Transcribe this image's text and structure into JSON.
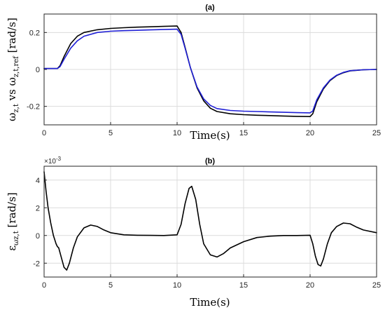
{
  "chart_data": [
    {
      "type": "line",
      "title": "(a)",
      "xlabel": "Time(s)",
      "ylabel": "ω_{z,t} vs ω_{z,t,ref} [rad/s]",
      "ylabel_parts": [
        "ω",
        "z,t",
        " vs ",
        "ω",
        "z,t,ref",
        " [rad/s]"
      ],
      "xlim": [
        0,
        25
      ],
      "ylim": [
        -0.3,
        0.3
      ],
      "xticks": [
        0,
        5,
        10,
        15,
        20,
        25
      ],
      "yticks": [
        -0.2,
        0,
        0.2
      ],
      "ytick_labels": [
        "-0.2",
        "0",
        "0.2"
      ],
      "grid": true,
      "series": [
        {
          "color": "#000000",
          "x": [
            0,
            1,
            1.2,
            1.5,
            2,
            2.5,
            3,
            4,
            5,
            6,
            7,
            8,
            9,
            10,
            10.3,
            10.6,
            11,
            11.5,
            12,
            12.5,
            13,
            14,
            15,
            16,
            17,
            18,
            19,
            20,
            20.2,
            20.5,
            21,
            21.5,
            22,
            22.5,
            23,
            24,
            25
          ],
          "y": [
            0.005,
            0.005,
            0.02,
            0.07,
            0.14,
            0.18,
            0.2,
            0.215,
            0.222,
            0.226,
            0.229,
            0.231,
            0.233,
            0.235,
            0.2,
            0.12,
            0.01,
            -0.1,
            -0.17,
            -0.21,
            -0.228,
            -0.24,
            -0.245,
            -0.248,
            -0.25,
            -0.252,
            -0.254,
            -0.255,
            -0.24,
            -0.175,
            -0.105,
            -0.06,
            -0.033,
            -0.018,
            -0.008,
            -0.002,
            0
          ]
        },
        {
          "color": "#1f1fd6",
          "x": [
            0,
            1,
            1.2,
            1.5,
            2,
            2.5,
            3,
            4,
            5,
            6,
            7,
            8,
            9,
            10,
            10.3,
            10.6,
            11,
            11.5,
            12,
            12.5,
            13,
            14,
            15,
            16,
            17,
            18,
            19,
            20,
            20.2,
            20.5,
            21,
            21.5,
            22,
            22.5,
            23,
            24,
            25
          ],
          "y": [
            0.005,
            0.005,
            0.015,
            0.055,
            0.115,
            0.155,
            0.18,
            0.2,
            0.207,
            0.21,
            0.212,
            0.214,
            0.216,
            0.218,
            0.19,
            0.115,
            0.01,
            -0.095,
            -0.16,
            -0.195,
            -0.212,
            -0.222,
            -0.226,
            -0.228,
            -0.23,
            -0.232,
            -0.234,
            -0.235,
            -0.225,
            -0.165,
            -0.1,
            -0.057,
            -0.031,
            -0.016,
            -0.007,
            -0.002,
            0
          ]
        }
      ]
    },
    {
      "type": "line",
      "title": "(b)",
      "xlabel": "Time(s)",
      "ylabel": "ε_{ω z,t} [rad/s]",
      "ylabel_parts": [
        "ε",
        "ωz,t",
        " [rad/s]"
      ],
      "exponent_label": "×10",
      "exponent_power": "-3",
      "xlim": [
        0,
        25
      ],
      "ylim": [
        -3,
        5
      ],
      "xticks": [
        0,
        5,
        10,
        15,
        20,
        25
      ],
      "yticks": [
        -2,
        0,
        2,
        4
      ],
      "ytick_labels": [
        "-2",
        "0",
        "2",
        "4"
      ],
      "grid": true,
      "series": [
        {
          "color": "#000000",
          "x": [
            0,
            0.15,
            0.3,
            0.5,
            0.7,
            0.9,
            1.0,
            1.1,
            1.3,
            1.5,
            1.7,
            1.9,
            2.2,
            2.5,
            3.0,
            3.5,
            4.0,
            4.5,
            5.0,
            6,
            7,
            8,
            9,
            10,
            10.3,
            10.6,
            10.9,
            11.1,
            11.4,
            11.7,
            12.0,
            12.5,
            13.0,
            13.5,
            14,
            15,
            16,
            17,
            18,
            19,
            20,
            20.2,
            20.4,
            20.6,
            20.8,
            21.0,
            21.3,
            21.6,
            22.0,
            22.5,
            23.0,
            23.5,
            24,
            25
          ],
          "y": [
            4.6,
            3.2,
            2.0,
            0.9,
            0.0,
            -0.6,
            -0.8,
            -0.9,
            -1.6,
            -2.3,
            -2.5,
            -2.0,
            -0.9,
            -0.1,
            0.55,
            0.75,
            0.65,
            0.4,
            0.2,
            0.05,
            0.02,
            0.01,
            0.0,
            0.05,
            0.8,
            2.3,
            3.4,
            3.55,
            2.6,
            0.8,
            -0.6,
            -1.4,
            -1.55,
            -1.3,
            -0.9,
            -0.45,
            -0.15,
            -0.05,
            0.0,
            0.0,
            0.02,
            -0.6,
            -1.5,
            -2.1,
            -2.2,
            -1.7,
            -0.6,
            0.2,
            0.65,
            0.9,
            0.85,
            0.6,
            0.4,
            0.2
          ]
        }
      ]
    }
  ]
}
